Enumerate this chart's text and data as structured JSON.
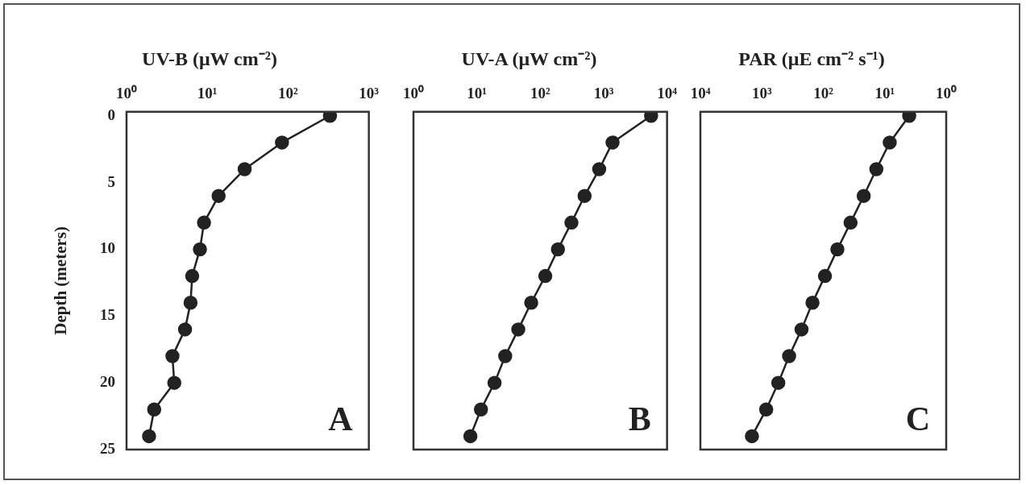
{
  "chart_data": [
    {
      "type": "line",
      "title": "UV-B (μW cm⁻²)",
      "ylabel": "Depth (meters)",
      "marker": "circle",
      "line_style": "solid",
      "log": "x",
      "grid": false,
      "legend": false,
      "series": [
        {
          "color": "#222222",
          "x": [
            330,
            84,
            29,
            13.8,
            9.1,
            8.1,
            6.5,
            6.2,
            5.3,
            3.7,
            3.9,
            2.2,
            1.9
          ],
          "values": [
            0,
            2,
            4,
            6,
            8,
            10,
            12,
            14,
            16,
            18,
            20,
            22,
            24
          ]
        }
      ],
      "xlim": [
        1,
        1000
      ],
      "xticks": [
        {
          "value": 1,
          "label": "10⁰"
        },
        {
          "value": 10,
          "label": "10¹"
        },
        {
          "value": 100,
          "label": "10²"
        },
        {
          "value": 1000,
          "label": "10³"
        }
      ],
      "ylim": [
        25,
        -0.3
      ],
      "yticks": [
        0,
        5,
        10,
        15,
        20,
        25
      ],
      "annotations": [
        "A"
      ]
    },
    {
      "type": "line",
      "title": "UV-A (μW cm⁻²)",
      "marker": "circle",
      "line_style": "solid",
      "log": "x",
      "grid": false,
      "legend": false,
      "tick_labels": "x",
      "series": [
        {
          "color": "#222222",
          "x": [
            5600,
            1380,
            850,
            500,
            310,
            190,
            120,
            72,
            45,
            28,
            19,
            11.6,
            7.9
          ],
          "values": [
            0,
            2,
            4,
            6,
            8,
            10,
            12,
            14,
            16,
            18,
            20,
            22,
            24
          ]
        }
      ],
      "xlim": [
        1,
        10000
      ],
      "xticks": [
        {
          "value": 1,
          "label": "10⁰"
        },
        {
          "value": 10,
          "label": "10¹"
        },
        {
          "value": 100,
          "label": "10²"
        },
        {
          "value": 1000,
          "label": "10³"
        },
        {
          "value": 10000,
          "label": "10⁴"
        }
      ],
      "ylim": [
        25,
        -0.3
      ],
      "yticks": [
        0,
        5,
        10,
        15,
        20,
        25
      ],
      "annotations": [
        "B"
      ]
    },
    {
      "type": "line",
      "title": "PAR (μE cm⁻² s⁻¹)",
      "marker": "circle",
      "line_style": "solid",
      "log": "x",
      "grid": false,
      "legend": false,
      "tick_labels": "x",
      "series": [
        {
          "color": "#222222",
          "x": [
            4.0,
            8.3,
            13.7,
            22,
            36,
            59,
            94,
            150,
            226,
            360,
            540,
            850,
            1450
          ],
          "values": [
            0,
            2,
            4,
            6,
            8,
            10,
            12,
            14,
            16,
            18,
            20,
            22,
            24
          ]
        }
      ],
      "xlim": [
        10000,
        1
      ],
      "xticks": [
        {
          "value": 10000,
          "label": "10⁴"
        },
        {
          "value": 1000,
          "label": "10³"
        },
        {
          "value": 100,
          "label": "10²"
        },
        {
          "value": 10,
          "label": "10¹"
        },
        {
          "value": 1,
          "label": "10⁰"
        }
      ],
      "ylim": [
        25,
        -0.3
      ],
      "yticks": [
        0,
        5,
        10,
        15,
        20,
        25
      ],
      "annotations": [
        "C"
      ]
    }
  ]
}
